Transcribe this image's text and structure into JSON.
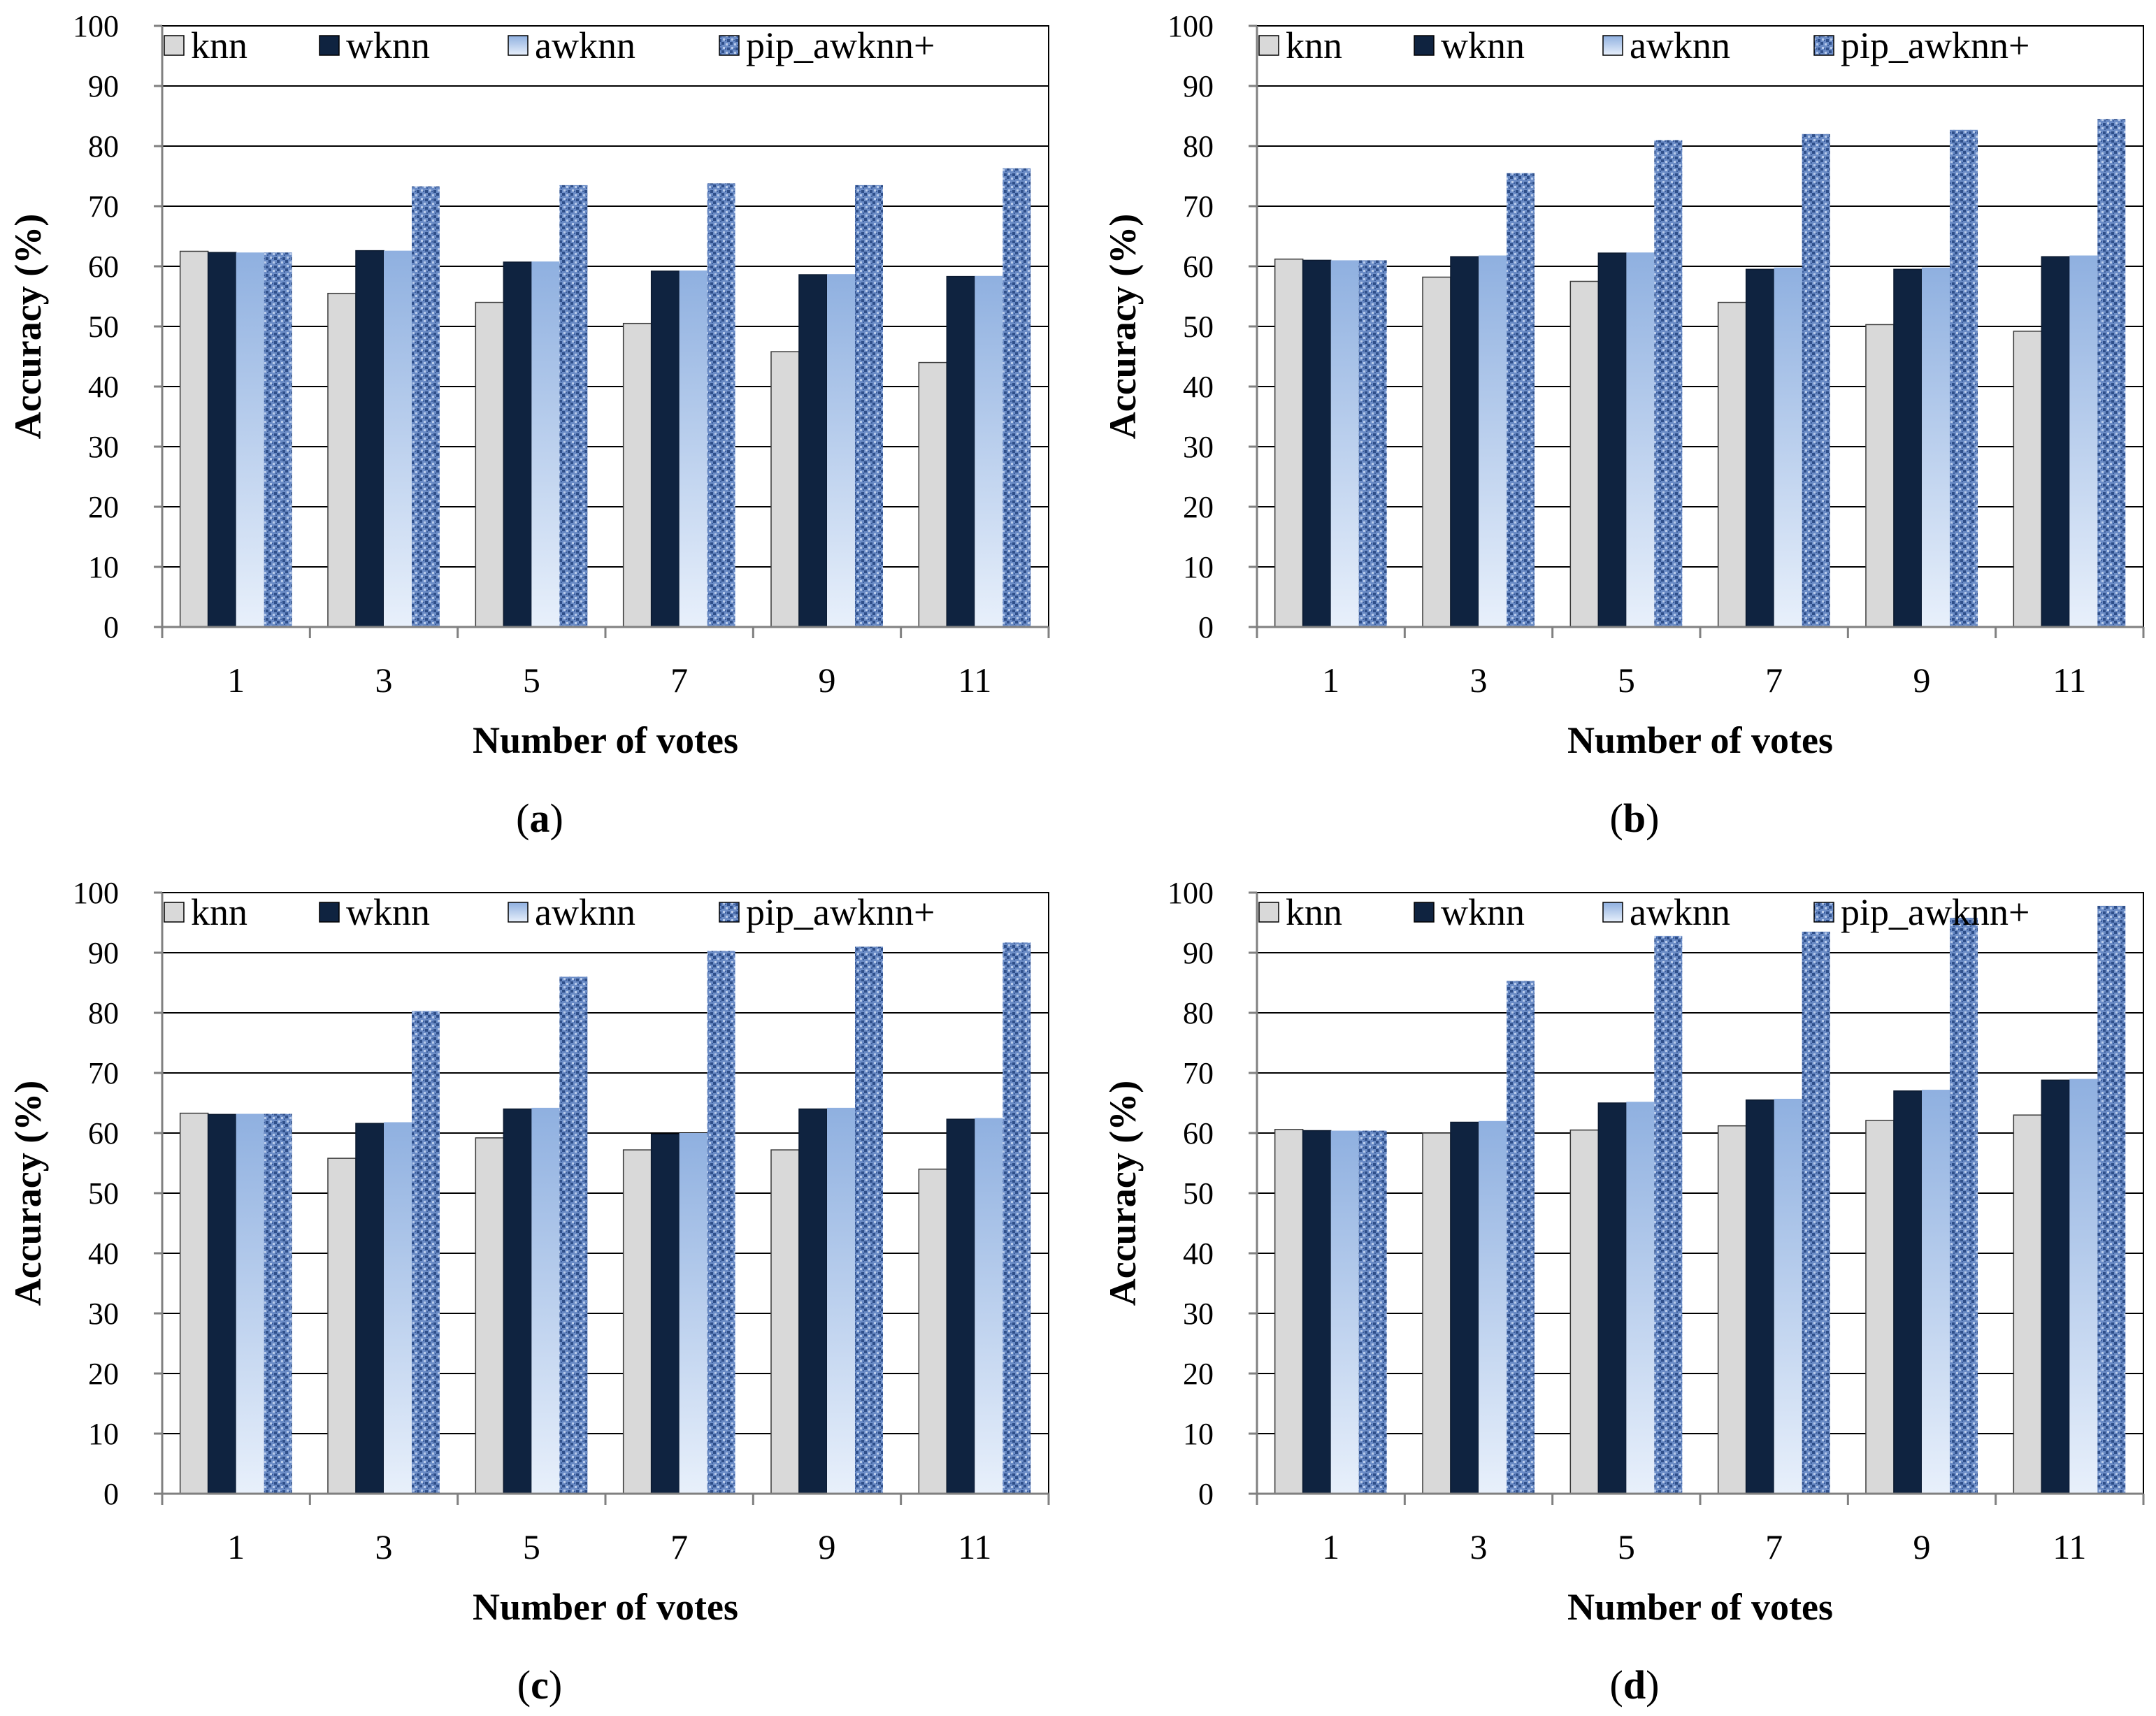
{
  "colors": {
    "knn": "#d9d9d9",
    "wknn": "#0f2340",
    "awknn_light": "#e8f0fb",
    "awknn_dark": "#8fb0e0",
    "pip_base": "#6b8cc6",
    "pip_dark": "#2f4f8a",
    "pip_light": "#b7caea",
    "grid": "#000000",
    "axis": "#808080"
  },
  "chart_data": [
    {
      "type": "bar",
      "panel_label": "a",
      "xlabel": "Number of votes",
      "ylabel": "Accuracy (%)",
      "ylim": [
        0,
        100
      ],
      "yticks": [
        0,
        10,
        20,
        30,
        40,
        50,
        60,
        70,
        80,
        90,
        100
      ],
      "grid": true,
      "legend_position": "top",
      "categories": [
        "1",
        "3",
        "5",
        "7",
        "9",
        "11"
      ],
      "series": [
        {
          "name": "knn",
          "values": [
            62.5,
            55.5,
            54,
            50.5,
            45.8,
            44
          ]
        },
        {
          "name": "wknn",
          "values": [
            62.3,
            62.6,
            60.7,
            59.2,
            58.6,
            58.3
          ]
        },
        {
          "name": "awknn",
          "values": [
            62.3,
            62.6,
            60.8,
            59.3,
            58.7,
            58.4
          ]
        },
        {
          "name": "pip_awknn+",
          "values": [
            62.3,
            73.3,
            73.5,
            73.8,
            73.5,
            76.3
          ]
        }
      ]
    },
    {
      "type": "bar",
      "panel_label": "b",
      "xlabel": "Number of votes",
      "ylabel": "Accuracy (%)",
      "ylim": [
        0,
        100
      ],
      "yticks": [
        0,
        10,
        20,
        30,
        40,
        50,
        60,
        70,
        80,
        90,
        100
      ],
      "grid": true,
      "legend_position": "top",
      "categories": [
        "1",
        "3",
        "5",
        "7",
        "9",
        "11"
      ],
      "series": [
        {
          "name": "knn",
          "values": [
            61.2,
            58.2,
            57.5,
            54,
            50.3,
            49.2
          ]
        },
        {
          "name": "wknn",
          "values": [
            61,
            61.6,
            62.2,
            59.5,
            59.5,
            61.6
          ]
        },
        {
          "name": "awknn",
          "values": [
            61,
            61.8,
            62.3,
            59.8,
            59.8,
            61.8
          ]
        },
        {
          "name": "pip_awknn+",
          "values": [
            61,
            75.5,
            81,
            82,
            82.7,
            84.5
          ]
        }
      ]
    },
    {
      "type": "bar",
      "panel_label": "c",
      "xlabel": "Number of votes",
      "ylabel": "Accuracy (%)",
      "ylim": [
        0,
        100
      ],
      "yticks": [
        0,
        10,
        20,
        30,
        40,
        50,
        60,
        70,
        80,
        90,
        100
      ],
      "grid": true,
      "legend_position": "top",
      "categories": [
        "1",
        "3",
        "5",
        "7",
        "9",
        "11"
      ],
      "series": [
        {
          "name": "knn",
          "values": [
            63.3,
            55.8,
            59.2,
            57.2,
            57.2,
            54
          ]
        },
        {
          "name": "wknn",
          "values": [
            63.1,
            61.6,
            64,
            59.8,
            64,
            62.3
          ]
        },
        {
          "name": "awknn",
          "values": [
            63.2,
            61.8,
            64.2,
            60,
            64.2,
            62.5
          ]
        },
        {
          "name": "pip_awknn+",
          "values": [
            63.2,
            80.3,
            86,
            90.3,
            91,
            91.7
          ]
        }
      ]
    },
    {
      "type": "bar",
      "panel_label": "d",
      "xlabel": "Number of votes",
      "ylabel": "Accuracy (%)",
      "ylim": [
        0,
        100
      ],
      "yticks": [
        0,
        10,
        20,
        30,
        40,
        50,
        60,
        70,
        80,
        90,
        100
      ],
      "grid": true,
      "legend_position": "top",
      "categories": [
        "1",
        "3",
        "5",
        "7",
        "9",
        "11"
      ],
      "series": [
        {
          "name": "knn",
          "values": [
            60.6,
            60,
            60.5,
            61.2,
            62.1,
            63
          ]
        },
        {
          "name": "wknn",
          "values": [
            60.4,
            61.8,
            65,
            65.5,
            67,
            68.8
          ]
        },
        {
          "name": "awknn",
          "values": [
            60.4,
            62,
            65.2,
            65.7,
            67.2,
            69
          ]
        },
        {
          "name": "pip_awknn+",
          "values": [
            60.4,
            85.3,
            92.8,
            93.5,
            95.8,
            97.8
          ]
        }
      ]
    }
  ]
}
